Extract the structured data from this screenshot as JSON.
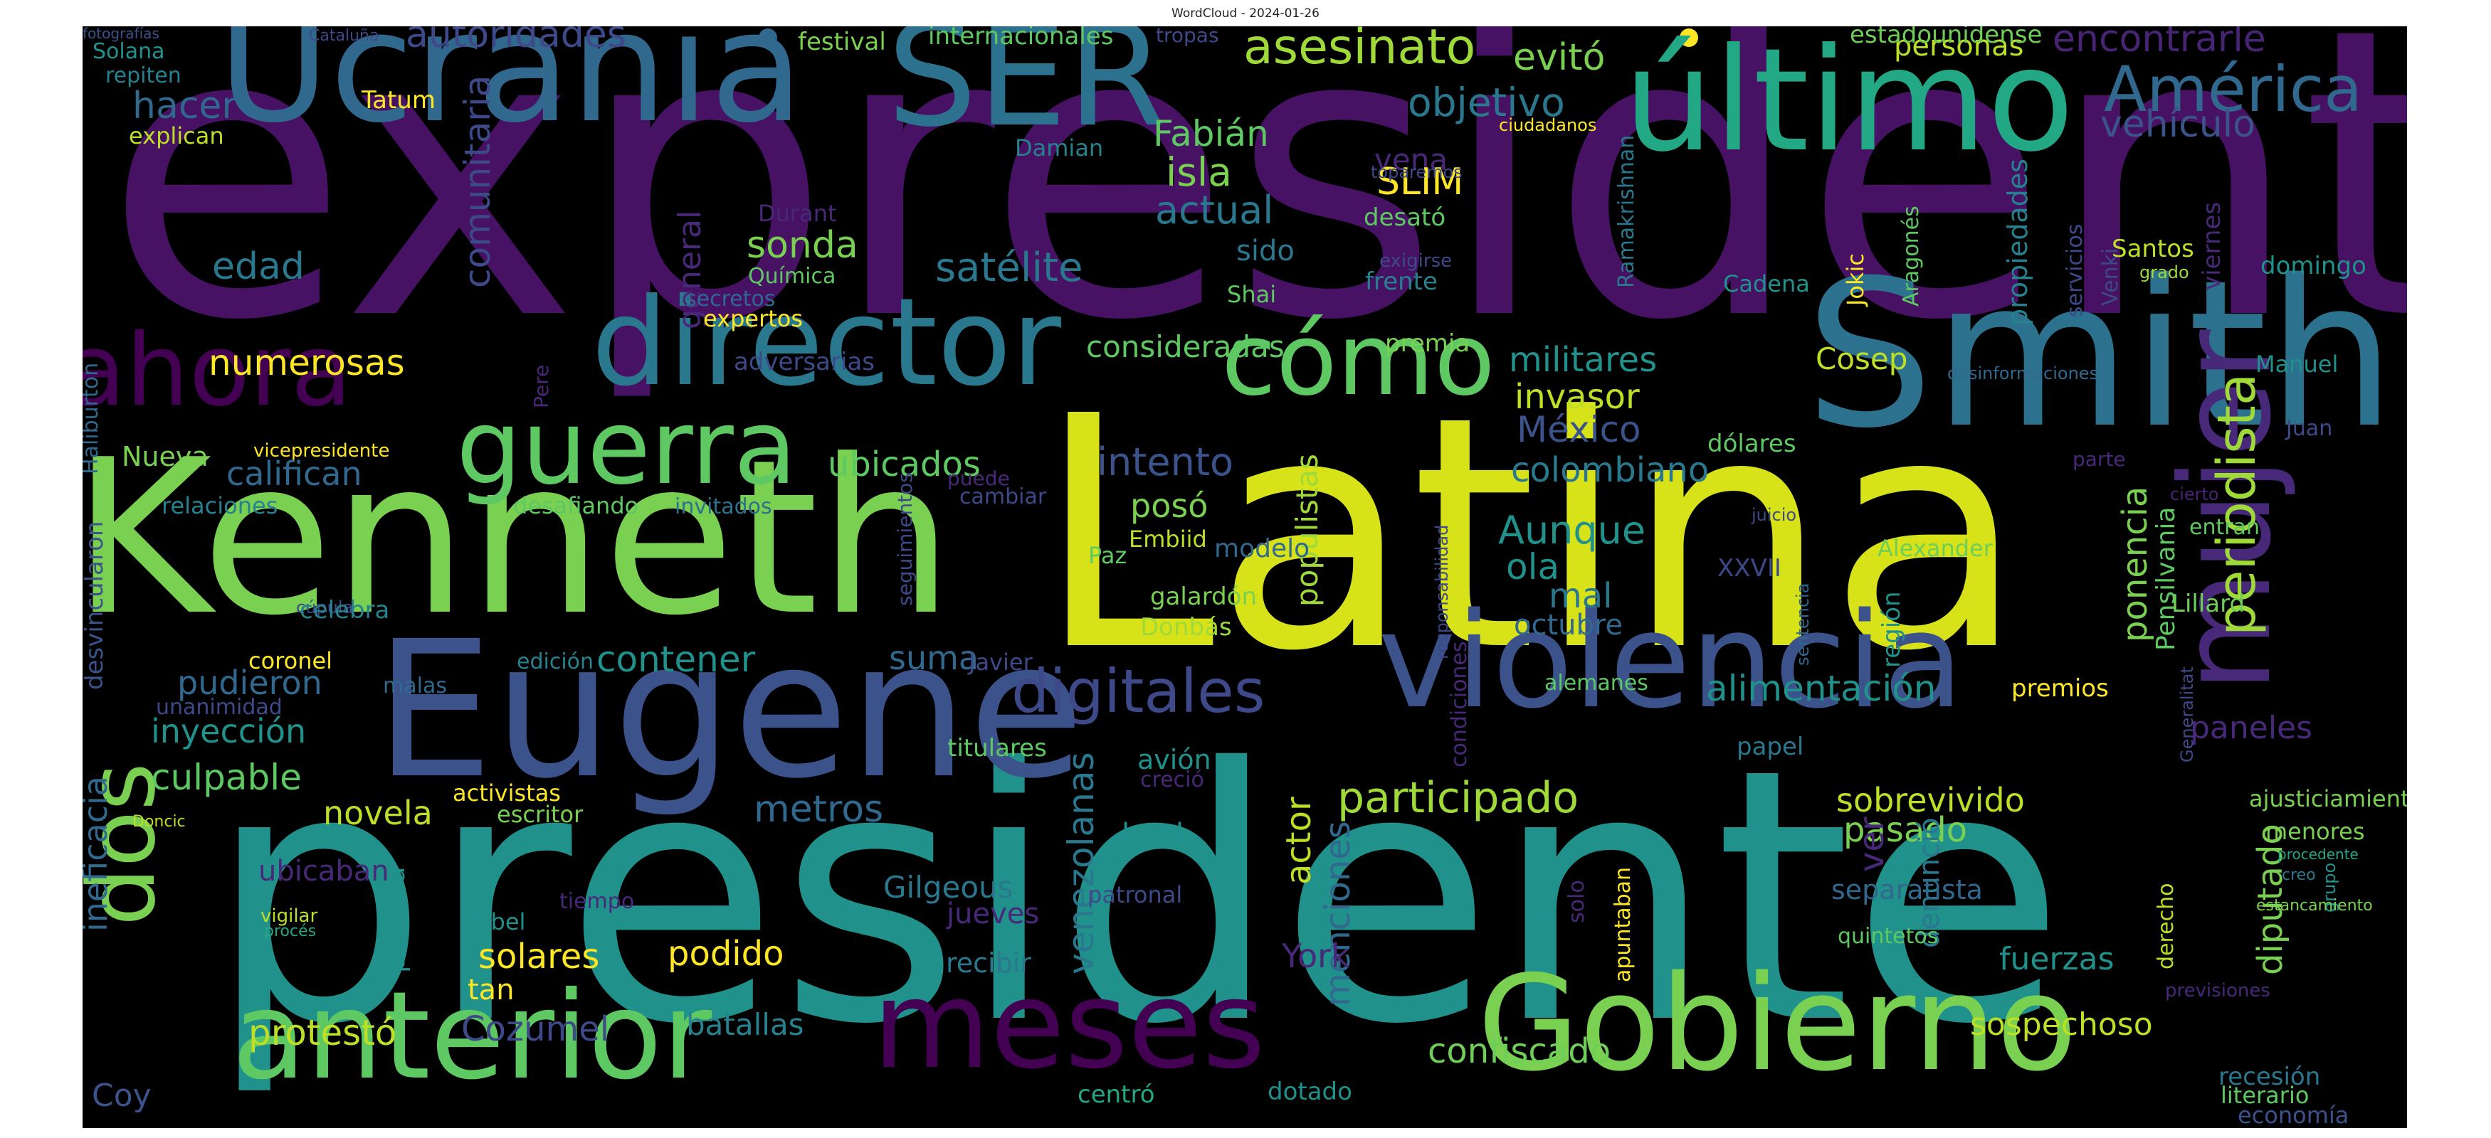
{
  "title": "WordCloud - 2024-01-26",
  "words": [
    {
      "text": "expresidente",
      "color": "#471164"
    },
    {
      "text": "presidente",
      "color": "#21918c"
    },
    {
      "text": "Latina",
      "color": "#d8e219"
    },
    {
      "text": "Kenneth",
      "color": "#7ad151"
    },
    {
      "text": "Smith",
      "color": "#2c718e"
    },
    {
      "text": "Eugene",
      "color": "#3b528b"
    },
    {
      "text": "Ucrania",
      "color": "#31688e"
    },
    {
      "text": "SER",
      "color": "#2c728e"
    },
    {
      "text": "último",
      "color": "#22a884"
    },
    {
      "text": "violencia",
      "color": "#3b528b"
    },
    {
      "text": "mujer",
      "color": "#482878"
    },
    {
      "text": "director",
      "color": "#2a788e"
    },
    {
      "text": "Gobierno",
      "color": "#7ad151"
    },
    {
      "text": "meses",
      "color": "#440154"
    },
    {
      "text": "anterior",
      "color": "#5ec962"
    },
    {
      "text": "guerra",
      "color": "#5ec962"
    },
    {
      "text": "cómo",
      "color": "#5ec962"
    },
    {
      "text": "ahora",
      "color": "#440154"
    },
    {
      "text": "dos",
      "color": "#7ad151"
    },
    {
      "text": "América",
      "color": "#31688e"
    },
    {
      "text": "periodista",
      "color": "#a0da39"
    },
    {
      "text": "digitales",
      "color": "#3e4989"
    },
    {
      "text": "asesinato",
      "color": "#a0da39"
    },
    {
      "text": "evitó",
      "color": "#7ad151"
    },
    {
      "text": "autoridades",
      "color": "#3e4989"
    },
    {
      "text": "personas",
      "color": "#bddf26"
    },
    {
      "text": "encontrarle",
      "color": "#482475"
    },
    {
      "text": "vehículo",
      "color": "#3b528b"
    },
    {
      "text": "isla",
      "color": "#7ad151"
    },
    {
      "text": "objetivo",
      "color": "#2a788e"
    },
    {
      "text": "Fabián",
      "color": "#5ec962"
    },
    {
      "text": "vena",
      "color": "#482878"
    },
    {
      "text": "SLIM",
      "color": "#fde725"
    },
    {
      "text": "hacer",
      "color": "#31688e"
    },
    {
      "text": "Tatum",
      "color": "#fde725"
    },
    {
      "text": "explican",
      "color": "#bddf26"
    },
    {
      "text": "Solana",
      "color": "#21918c"
    },
    {
      "text": "repiten",
      "color": "#26828e"
    },
    {
      "text": "Cataluña",
      "color": "#3e4989"
    },
    {
      "text": "festival",
      "color": "#7ad151"
    },
    {
      "text": "internacionales",
      "color": "#5ec962"
    },
    {
      "text": "tropas",
      "color": "#3e4989"
    },
    {
      "text": "estadounidense",
      "color": "#6ece58"
    },
    {
      "text": "comunitaria",
      "color": "#3e4989"
    },
    {
      "text": "actual",
      "color": "#2a788e"
    },
    {
      "text": "desató",
      "color": "#5ec962"
    },
    {
      "text": "toparemos",
      "color": "#3e4989"
    },
    {
      "text": "ciudadanos",
      "color": "#fde725"
    },
    {
      "text": "Damian",
      "color": "#26828e"
    },
    {
      "text": "sonda",
      "color": "#7ad151"
    },
    {
      "text": "satélite",
      "color": "#2a788e"
    },
    {
      "text": "sido",
      "color": "#2a788e"
    },
    {
      "text": "Shai",
      "color": "#5ec962"
    },
    {
      "text": "exigirse",
      "color": "#3e4989"
    },
    {
      "text": "frente",
      "color": "#26828e"
    },
    {
      "text": "edad",
      "color": "#2a788e"
    },
    {
      "text": "general",
      "color": "#482878"
    },
    {
      "text": "Química",
      "color": "#5ec962"
    },
    {
      "text": "secretos",
      "color": "#31688e"
    },
    {
      "text": "expertos",
      "color": "#fde725"
    },
    {
      "text": "Durant",
      "color": "#482878"
    },
    {
      "text": "Ramakrishnan",
      "color": "#2a788e"
    },
    {
      "text": "propiedades",
      "color": "#26828e"
    },
    {
      "text": "servicios",
      "color": "#3e4989"
    },
    {
      "text": "Aragonés",
      "color": "#5ec962"
    },
    {
      "text": "Jokic",
      "color": "#fde725"
    },
    {
      "text": "Cadena",
      "color": "#21918c"
    },
    {
      "text": "Venki",
      "color": "#3e4989"
    },
    {
      "text": "Santos",
      "color": "#bddf26"
    },
    {
      "text": "grado",
      "color": "#a0da39"
    },
    {
      "text": "domingo",
      "color": "#21918c"
    },
    {
      "text": "viernes",
      "color": "#482878"
    },
    {
      "text": "numerosas",
      "color": "#fde725"
    },
    {
      "text": "consideradas",
      "color": "#5ec962"
    },
    {
      "text": "premia",
      "color": "#7ad151"
    },
    {
      "text": "militares",
      "color": "#21918c"
    },
    {
      "text": "Cosep",
      "color": "#bddf26"
    },
    {
      "text": "desinformaciones",
      "color": "#31688e"
    },
    {
      "text": "Manuel",
      "color": "#21918c"
    },
    {
      "text": "adversarias",
      "color": "#3e4989"
    },
    {
      "text": "invasor",
      "color": "#bddf26"
    },
    {
      "text": "México",
      "color": "#3b528b"
    },
    {
      "text": "dólares",
      "color": "#5ec962"
    },
    {
      "text": "Juan",
      "color": "#3e4989"
    },
    {
      "text": "parte",
      "color": "#482878"
    },
    {
      "text": "Haliburton",
      "color": "#31688e"
    },
    {
      "text": "vicepresidente",
      "color": "#fde725"
    },
    {
      "text": "Nueva",
      "color": "#7ad151"
    },
    {
      "text": "califican",
      "color": "#31688e"
    },
    {
      "text": "relaciones",
      "color": "#26828e"
    },
    {
      "text": "Pere",
      "color": "#482878"
    },
    {
      "text": "desafiando",
      "color": "#5ec962"
    },
    {
      "text": "invitados",
      "color": "#2c718e"
    },
    {
      "text": "ubicados",
      "color": "#5ec962"
    },
    {
      "text": "seguimientos",
      "color": "#3e4989"
    },
    {
      "text": "puede",
      "color": "#482878"
    },
    {
      "text": "cambiar",
      "color": "#3e4989"
    },
    {
      "text": "intento",
      "color": "#3b528b"
    },
    {
      "text": "populistas",
      "color": "#a0da39"
    },
    {
      "text": "colombiano",
      "color": "#2a788e"
    },
    {
      "text": "cierto",
      "color": "#482475"
    },
    {
      "text": "juicio",
      "color": "#3e4989"
    },
    {
      "text": "posó",
      "color": "#7ad151"
    },
    {
      "text": "Paz",
      "color": "#5ec962"
    },
    {
      "text": "Embiid",
      "color": "#bddf26"
    },
    {
      "text": "modelo",
      "color": "#31688e"
    },
    {
      "text": "Aunque",
      "color": "#21918c"
    },
    {
      "text": "responsabilidad",
      "color": "#3e4989"
    },
    {
      "text": "ola",
      "color": "#21918c"
    },
    {
      "text": "mal",
      "color": "#2a788e"
    },
    {
      "text": "octubre",
      "color": "#31688e"
    },
    {
      "text": "XXVII",
      "color": "#3e4989"
    },
    {
      "text": "sentencia",
      "color": "#31688e"
    },
    {
      "text": "región",
      "color": "#21918c"
    },
    {
      "text": "Alexander",
      "color": "#6ece58"
    },
    {
      "text": "ponencia",
      "color": "#7ad151"
    },
    {
      "text": "Pensilvania",
      "color": "#5ec962"
    },
    {
      "text": "entran",
      "color": "#5ec962"
    },
    {
      "text": "Lillard",
      "color": "#6ece58"
    },
    {
      "text": "galardón",
      "color": "#7ad151"
    },
    {
      "text": "Donbás",
      "color": "#a0da39"
    },
    {
      "text": "cúpula",
      "color": "#3e4989"
    },
    {
      "text": "coronel",
      "color": "#fde725"
    },
    {
      "text": "celebra",
      "color": "#26828e"
    },
    {
      "text": "edición",
      "color": "#26828e"
    },
    {
      "text": "contener",
      "color": "#21918c"
    },
    {
      "text": "suma",
      "color": "#31688e"
    },
    {
      "text": "Javier",
      "color": "#3e4989"
    },
    {
      "text": "condiciones",
      "color": "#482878"
    },
    {
      "text": "alemanes",
      "color": "#5ec962"
    },
    {
      "text": "alimentación",
      "color": "#21918c"
    },
    {
      "text": "premios",
      "color": "#fde725"
    },
    {
      "text": "Generalitat",
      "color": "#3e4989"
    },
    {
      "text": "desvincularon",
      "color": "#3b528b"
    },
    {
      "text": "pudieron",
      "color": "#31688e"
    },
    {
      "text": "unanimidad",
      "color": "#3e4989"
    },
    {
      "text": "malas",
      "color": "#31688e"
    },
    {
      "text": "inyección",
      "color": "#21918c"
    },
    {
      "text": "titulares",
      "color": "#5ec962"
    },
    {
      "text": "avión",
      "color": "#21918c"
    },
    {
      "text": "papel",
      "color": "#2a788e"
    },
    {
      "text": "paneles",
      "color": "#482878"
    },
    {
      "text": "culpable",
      "color": "#5ec962"
    },
    {
      "text": "ineficacia",
      "color": "#31688e"
    },
    {
      "text": "creció",
      "color": "#482878"
    },
    {
      "text": "participado",
      "color": "#a0da39"
    },
    {
      "text": "sobrevivido",
      "color": "#bddf26"
    },
    {
      "text": "ajusticiamiento",
      "color": "#7ad151"
    },
    {
      "text": "Doncic",
      "color": "#bddf26"
    },
    {
      "text": "activistas",
      "color": "#fde725"
    },
    {
      "text": "escritor",
      "color": "#7ad151"
    },
    {
      "text": "novela",
      "color": "#bddf26"
    },
    {
      "text": "metros",
      "color": "#31688e"
    },
    {
      "text": "venezolanas",
      "color": "#2a788e"
    },
    {
      "text": "letal",
      "color": "#21918c"
    },
    {
      "text": "pasado",
      "color": "#7ad151"
    },
    {
      "text": "menores",
      "color": "#7ad151"
    },
    {
      "text": "denunció",
      "color": "#2a788e"
    },
    {
      "text": "diputado",
      "color": "#7ad151"
    },
    {
      "text": "procedente",
      "color": "#22a884"
    },
    {
      "text": "creo",
      "color": "#2a788e"
    },
    {
      "text": "grupo",
      "color": "#21918c"
    },
    {
      "text": "estancamiento",
      "color": "#7ad151"
    },
    {
      "text": "ubicaban",
      "color": "#482878"
    },
    {
      "text": "primera",
      "color": "#21918c"
    },
    {
      "text": "vigilar",
      "color": "#bddf26"
    },
    {
      "text": "procés",
      "color": "#22a884"
    },
    {
      "text": "tiempo",
      "color": "#482878"
    },
    {
      "text": "Nobel",
      "color": "#21918c"
    },
    {
      "text": "Gilgeous",
      "color": "#2a788e"
    },
    {
      "text": "patronal",
      "color": "#3e4989"
    },
    {
      "text": "jueves",
      "color": "#482878"
    },
    {
      "text": "actor",
      "color": "#bddf26"
    },
    {
      "text": "menciones",
      "color": "#31688e"
    },
    {
      "text": "policía",
      "color": "#21918c"
    },
    {
      "text": "separatista",
      "color": "#31688e"
    },
    {
      "text": "ver",
      "color": "#482878"
    },
    {
      "text": "fuerzas",
      "color": "#21918c"
    },
    {
      "text": "solares",
      "color": "#fde725"
    },
    {
      "text": "tan",
      "color": "#fde725"
    },
    {
      "text": "podido",
      "color": "#fde725"
    },
    {
      "text": "recibir",
      "color": "#2a788e"
    },
    {
      "text": "York",
      "color": "#482878"
    },
    {
      "text": "solo",
      "color": "#482878"
    },
    {
      "text": "apuntaban",
      "color": "#fde725"
    },
    {
      "text": "quintetos",
      "color": "#5ec962"
    },
    {
      "text": "derecho",
      "color": "#bddf26"
    },
    {
      "text": "previsiones",
      "color": "#482878"
    },
    {
      "text": "protestó",
      "color": "#bddf26"
    },
    {
      "text": "Cozumel",
      "color": "#3e4989"
    },
    {
      "text": "batallas",
      "color": "#26828e"
    },
    {
      "text": "sospechoso",
      "color": "#bddf26"
    },
    {
      "text": "confiscado",
      "color": "#6ece58"
    },
    {
      "text": "Coy",
      "color": "#3b528b"
    },
    {
      "text": "centró",
      "color": "#22a884"
    },
    {
      "text": "dotado",
      "color": "#21918c"
    },
    {
      "text": "recesión",
      "color": "#2a788e"
    },
    {
      "text": "literario",
      "color": "#5ec962"
    },
    {
      "text": "economía",
      "color": "#3b528b"
    },
    {
      "text": "fotografías",
      "color": "#3b528b"
    }
  ]
}
